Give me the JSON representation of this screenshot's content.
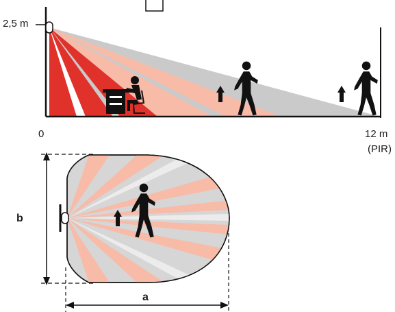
{
  "side_view": {
    "height_label": "2,5 m",
    "origin_label": "0",
    "range_label": "12 m",
    "sensor_type_label": "(PIR)",
    "zone_colors": {
      "near": "#e0312b",
      "mid": "#f7bba8",
      "far": "#cacaca"
    }
  },
  "top_view": {
    "width_label": "b",
    "depth_label": "a"
  },
  "icons": {
    "seated_person": "seated-person-at-desk-icon",
    "walking_person": "walking-person-icon",
    "direction_arrow": "up-arrow-icon",
    "sensor": "pir-sensor-icon"
  }
}
